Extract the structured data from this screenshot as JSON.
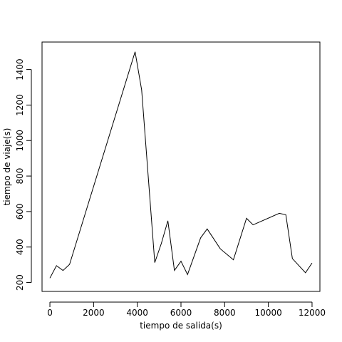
{
  "chart_data": {
    "type": "line",
    "title": "",
    "xlabel": "tiempo de salida(s)",
    "ylabel": "tiempo de viaje(s)",
    "xlim": [
      -360,
      12360
    ],
    "ylim": [
      150,
      1555
    ],
    "xticks": [
      0,
      2000,
      4000,
      6000,
      8000,
      10000,
      12000
    ],
    "xtick_labels": [
      "0",
      "2000",
      "4000",
      "6000",
      "8000",
      "10000",
      "12000"
    ],
    "yticks": [
      200,
      400,
      600,
      800,
      1000,
      1200,
      1400
    ],
    "ytick_labels": [
      "200",
      "400",
      "600",
      "800",
      "1000",
      "1200",
      "1400"
    ],
    "grid": false,
    "line_color": "#000000",
    "series": [
      {
        "x": [
          0,
          300,
          600,
          900,
          3900,
          4200,
          4800,
          5100,
          5400,
          5700,
          6000,
          6300,
          6900,
          7200,
          7800,
          8400,
          9000,
          9300,
          10500,
          10800,
          11100,
          11700,
          12000
        ],
        "values": [
          225,
          295,
          268,
          302,
          1500,
          1285,
          312,
          420,
          548,
          268,
          320,
          245,
          452,
          502,
          390,
          328,
          562,
          525,
          590,
          582,
          335,
          255,
          310
        ]
      }
    ]
  }
}
